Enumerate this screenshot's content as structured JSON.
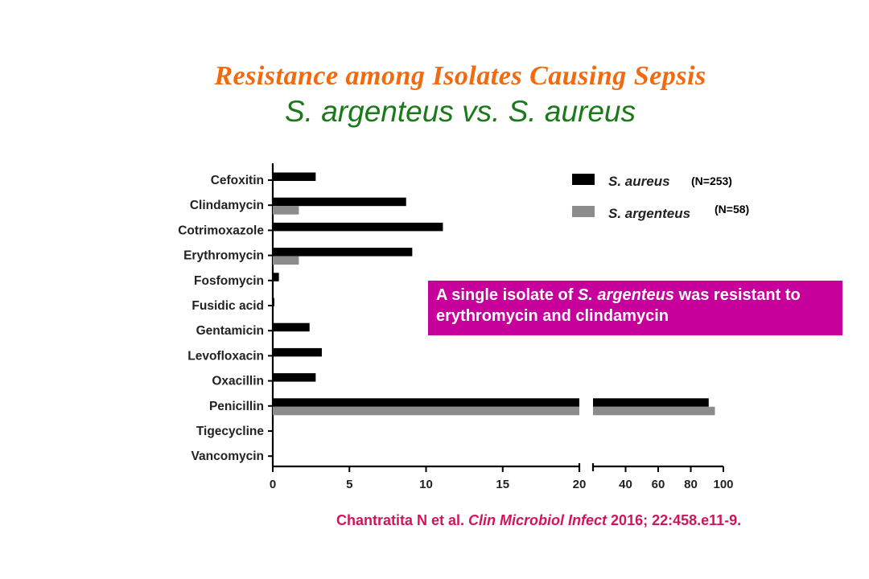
{
  "slide": {
    "title": "Resistance among Isolates Causing Sepsis",
    "subtitle": "S. argenteus vs. S. aureus",
    "callout": {
      "text_before": "A single isolate of ",
      "text_italic": "S. argenteus",
      "text_after": " was resistant to erythromycin and clindamycin"
    },
    "citation": {
      "authors": "Chantratita N et al. ",
      "journal": "Clin Microbiol Infect",
      "details": " 2016; 22:458.e11-9."
    }
  },
  "chart_data": {
    "type": "bar",
    "orientation": "horizontal",
    "categories": [
      "Cefoxitin",
      "Clindamycin",
      "Cotrimoxazole",
      "Erythromycin",
      "Fosfomycin",
      "Fusidic acid",
      "Gentamicin",
      "Levofloxacin",
      "Oxacillin",
      "Penicillin",
      "Tigecycline",
      "Vancomycin"
    ],
    "series": [
      {
        "name": "S. aureus",
        "n_label": "(N=253)",
        "color": "#000000",
        "values": [
          2.8,
          8.7,
          11.1,
          9.1,
          0.4,
          0.1,
          2.4,
          3.2,
          2.8,
          91,
          0,
          0
        ]
      },
      {
        "name": "S. argenteus",
        "n_label": "(N=58)",
        "color": "#8c8c8c",
        "values": [
          0,
          1.7,
          0,
          1.7,
          0,
          0,
          0,
          0,
          0,
          94.8,
          0,
          0
        ]
      }
    ],
    "x_axis": {
      "broken": true,
      "segment1": {
        "range": [
          0,
          20
        ],
        "ticks": [
          "0",
          "5",
          "10",
          "15",
          "20"
        ]
      },
      "segment2": {
        "range": [
          20,
          100
        ],
        "ticks": [
          "40",
          "60",
          "80",
          "100"
        ]
      }
    },
    "legend_position": "top-right",
    "grid": false
  }
}
